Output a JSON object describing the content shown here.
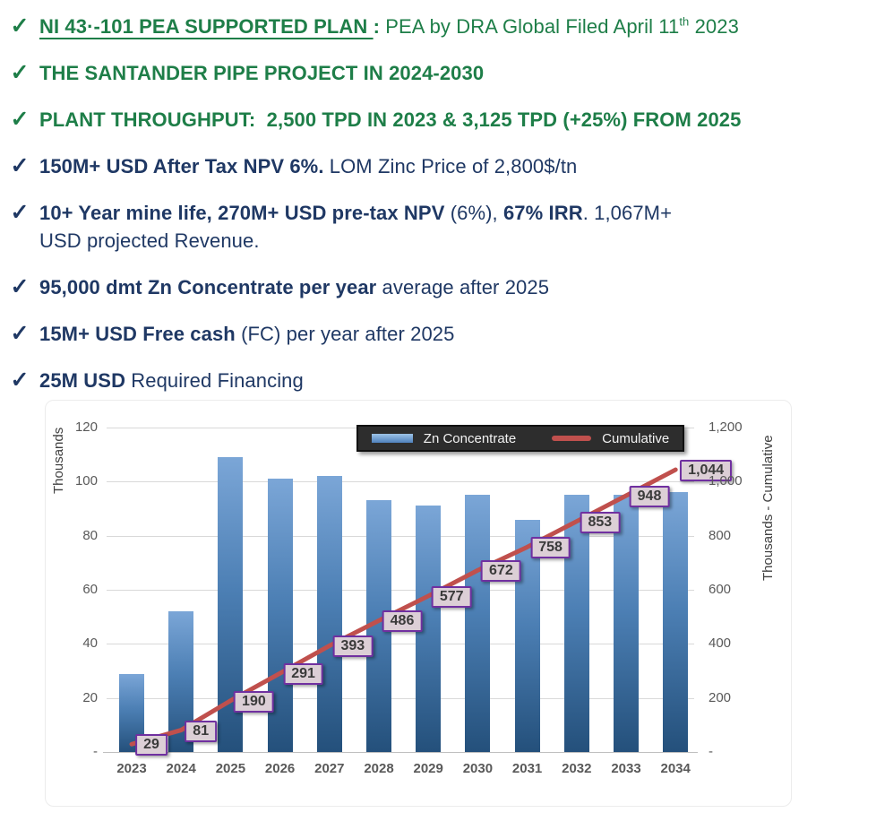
{
  "bullets": [
    {
      "color": "green",
      "segments": [
        {
          "text": "NI 43·-101 PEA SUPPORTED PLAN ",
          "bold": true,
          "underline": true
        },
        {
          "text": ": ",
          "bold": true
        },
        {
          "text": "PEA by DRA Global Filed April 11"
        },
        {
          "text": "th",
          "sup": true
        },
        {
          "text": " 2023"
        }
      ]
    },
    {
      "color": "green",
      "segments": [
        {
          "text": "THE SANTANDER PIPE PROJECT IN 2024-2030",
          "bold": true
        }
      ]
    },
    {
      "color": "green",
      "segments": [
        {
          "text": "PLANT THROUGHPUT:  2,500 TPD IN 2023 & 3,125 TPD (+25%) FROM 2025",
          "bold": true
        }
      ]
    },
    {
      "color": "navy",
      "segments": [
        {
          "text": "150M+ USD After Tax NPV 6%.",
          "bold": true
        },
        {
          "text": " LOM Zinc Price of 2,800$/tn"
        }
      ]
    },
    {
      "color": "navy",
      "segments": [
        {
          "text": "10+ Year mine life, 270M+ USD pre-tax NPV ",
          "bold": true
        },
        {
          "text": "(6%), "
        },
        {
          "text": "67% IRR",
          "bold": true
        },
        {
          "text": ". 1,067M+"
        },
        {
          "br": true
        },
        {
          "text": "USD projected Revenue."
        }
      ]
    },
    {
      "color": "navy",
      "segments": [
        {
          "text": "95,000 dmt Zn Concentrate per year",
          "bold": true
        },
        {
          "text": " average after 2025"
        }
      ]
    },
    {
      "color": "navy",
      "segments": [
        {
          "text": "15M+ USD Free cash",
          "bold": true
        },
        {
          "text": " (FC) per year after 2025"
        }
      ]
    },
    {
      "color": "navy",
      "segments": [
        {
          "text": "25M USD",
          "bold": true
        },
        {
          "text": " Required Financing"
        }
      ]
    }
  ],
  "chart_data": {
    "type": "bar",
    "categories": [
      "2023",
      "2024",
      "2025",
      "2026",
      "2027",
      "2028",
      "2029",
      "2030",
      "2031",
      "2032",
      "2033",
      "2034"
    ],
    "series": [
      {
        "name": "Zn Concentrate",
        "type": "bar",
        "axis": "left",
        "values": [
          29,
          52,
          109,
          101,
          102,
          93,
          91,
          95,
          86,
          95,
          95,
          96
        ]
      },
      {
        "name": "Cumulative",
        "type": "line",
        "axis": "right",
        "values": [
          29,
          81,
          190,
          291,
          393,
          486,
          577,
          672,
          758,
          853,
          948,
          1044
        ],
        "labels": [
          "29",
          "81",
          "190",
          "291",
          "393",
          "486",
          "577",
          "672",
          "758",
          "853",
          "948",
          "1,044"
        ]
      }
    ],
    "left_axis": {
      "title": "Thousands",
      "min": 0,
      "max": 120,
      "ticks": [
        "120",
        "100",
        "80",
        "60",
        "40",
        "20",
        "-"
      ]
    },
    "right_axis": {
      "title": "Thousands - Cumulative",
      "min": 0,
      "max": 1200,
      "ticks": [
        "1,200",
        "1,000",
        "800",
        "600",
        "400",
        "200",
        "-"
      ]
    },
    "grid": true,
    "legend_position": "top",
    "colors": {
      "bar_top": "#7ba6d7",
      "bar_bottom": "#24507b",
      "line": "#c0504d",
      "label_bg": "#dccfd6",
      "label_border": "#7030a0",
      "legend_bg": "#2d2d2d",
      "green_text": "#1e7e48",
      "navy_text": "#1f3864"
    }
  }
}
